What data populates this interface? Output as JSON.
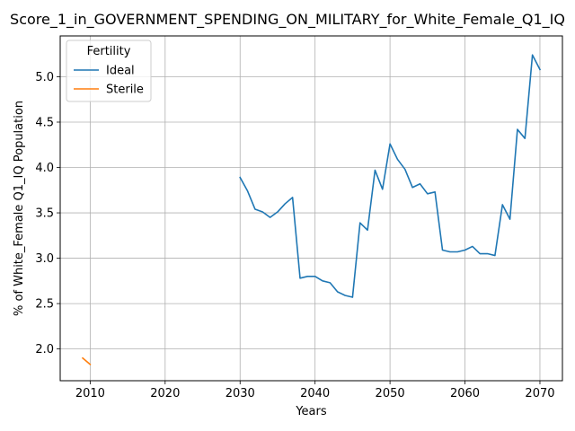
{
  "chart_data": {
    "type": "line",
    "title": "Score_1_in_GOVERNMENT_SPENDING_ON_MILITARY_for_White_Female_Q1_IQ",
    "xlabel": "Years",
    "ylabel": "% of White_Female Q1_IQ Population",
    "xlim": [
      2006,
      2073
    ],
    "ylim": [
      1.65,
      5.45
    ],
    "x_ticks": [
      2010,
      2020,
      2030,
      2040,
      2050,
      2060,
      2070
    ],
    "y_ticks": [
      2.0,
      2.5,
      3.0,
      3.5,
      4.0,
      4.5,
      5.0
    ],
    "grid": true,
    "legend": {
      "title": "Fertility",
      "placement": "top-left"
    },
    "series": [
      {
        "name": "Ideal",
        "color": "#1f77b4",
        "x": [
          2030,
          2031,
          2032,
          2033,
          2034,
          2035,
          2036,
          2037,
          2038,
          2039,
          2040,
          2041,
          2042,
          2043,
          2044,
          2045,
          2046,
          2047,
          2048,
          2049,
          2050,
          2051,
          2052,
          2053,
          2054,
          2055,
          2056,
          2057,
          2058,
          2059,
          2060,
          2061,
          2062,
          2063,
          2064,
          2065,
          2066,
          2067,
          2068,
          2069,
          2070
        ],
        "values": [
          3.89,
          3.74,
          3.54,
          3.51,
          3.45,
          3.51,
          3.6,
          3.67,
          2.78,
          2.8,
          2.8,
          2.75,
          2.73,
          2.63,
          2.59,
          2.57,
          3.39,
          3.31,
          3.97,
          3.76,
          4.26,
          4.09,
          3.98,
          3.78,
          3.82,
          3.71,
          3.73,
          3.09,
          3.07,
          3.07,
          3.09,
          3.13,
          3.05,
          3.05,
          3.03,
          3.59,
          3.43,
          4.42,
          4.32,
          5.24,
          5.08
        ]
      },
      {
        "name": "Sterile",
        "color": "#ff7f0e",
        "x": [
          2009,
          2010
        ],
        "values": [
          1.9,
          1.83
        ]
      }
    ]
  }
}
